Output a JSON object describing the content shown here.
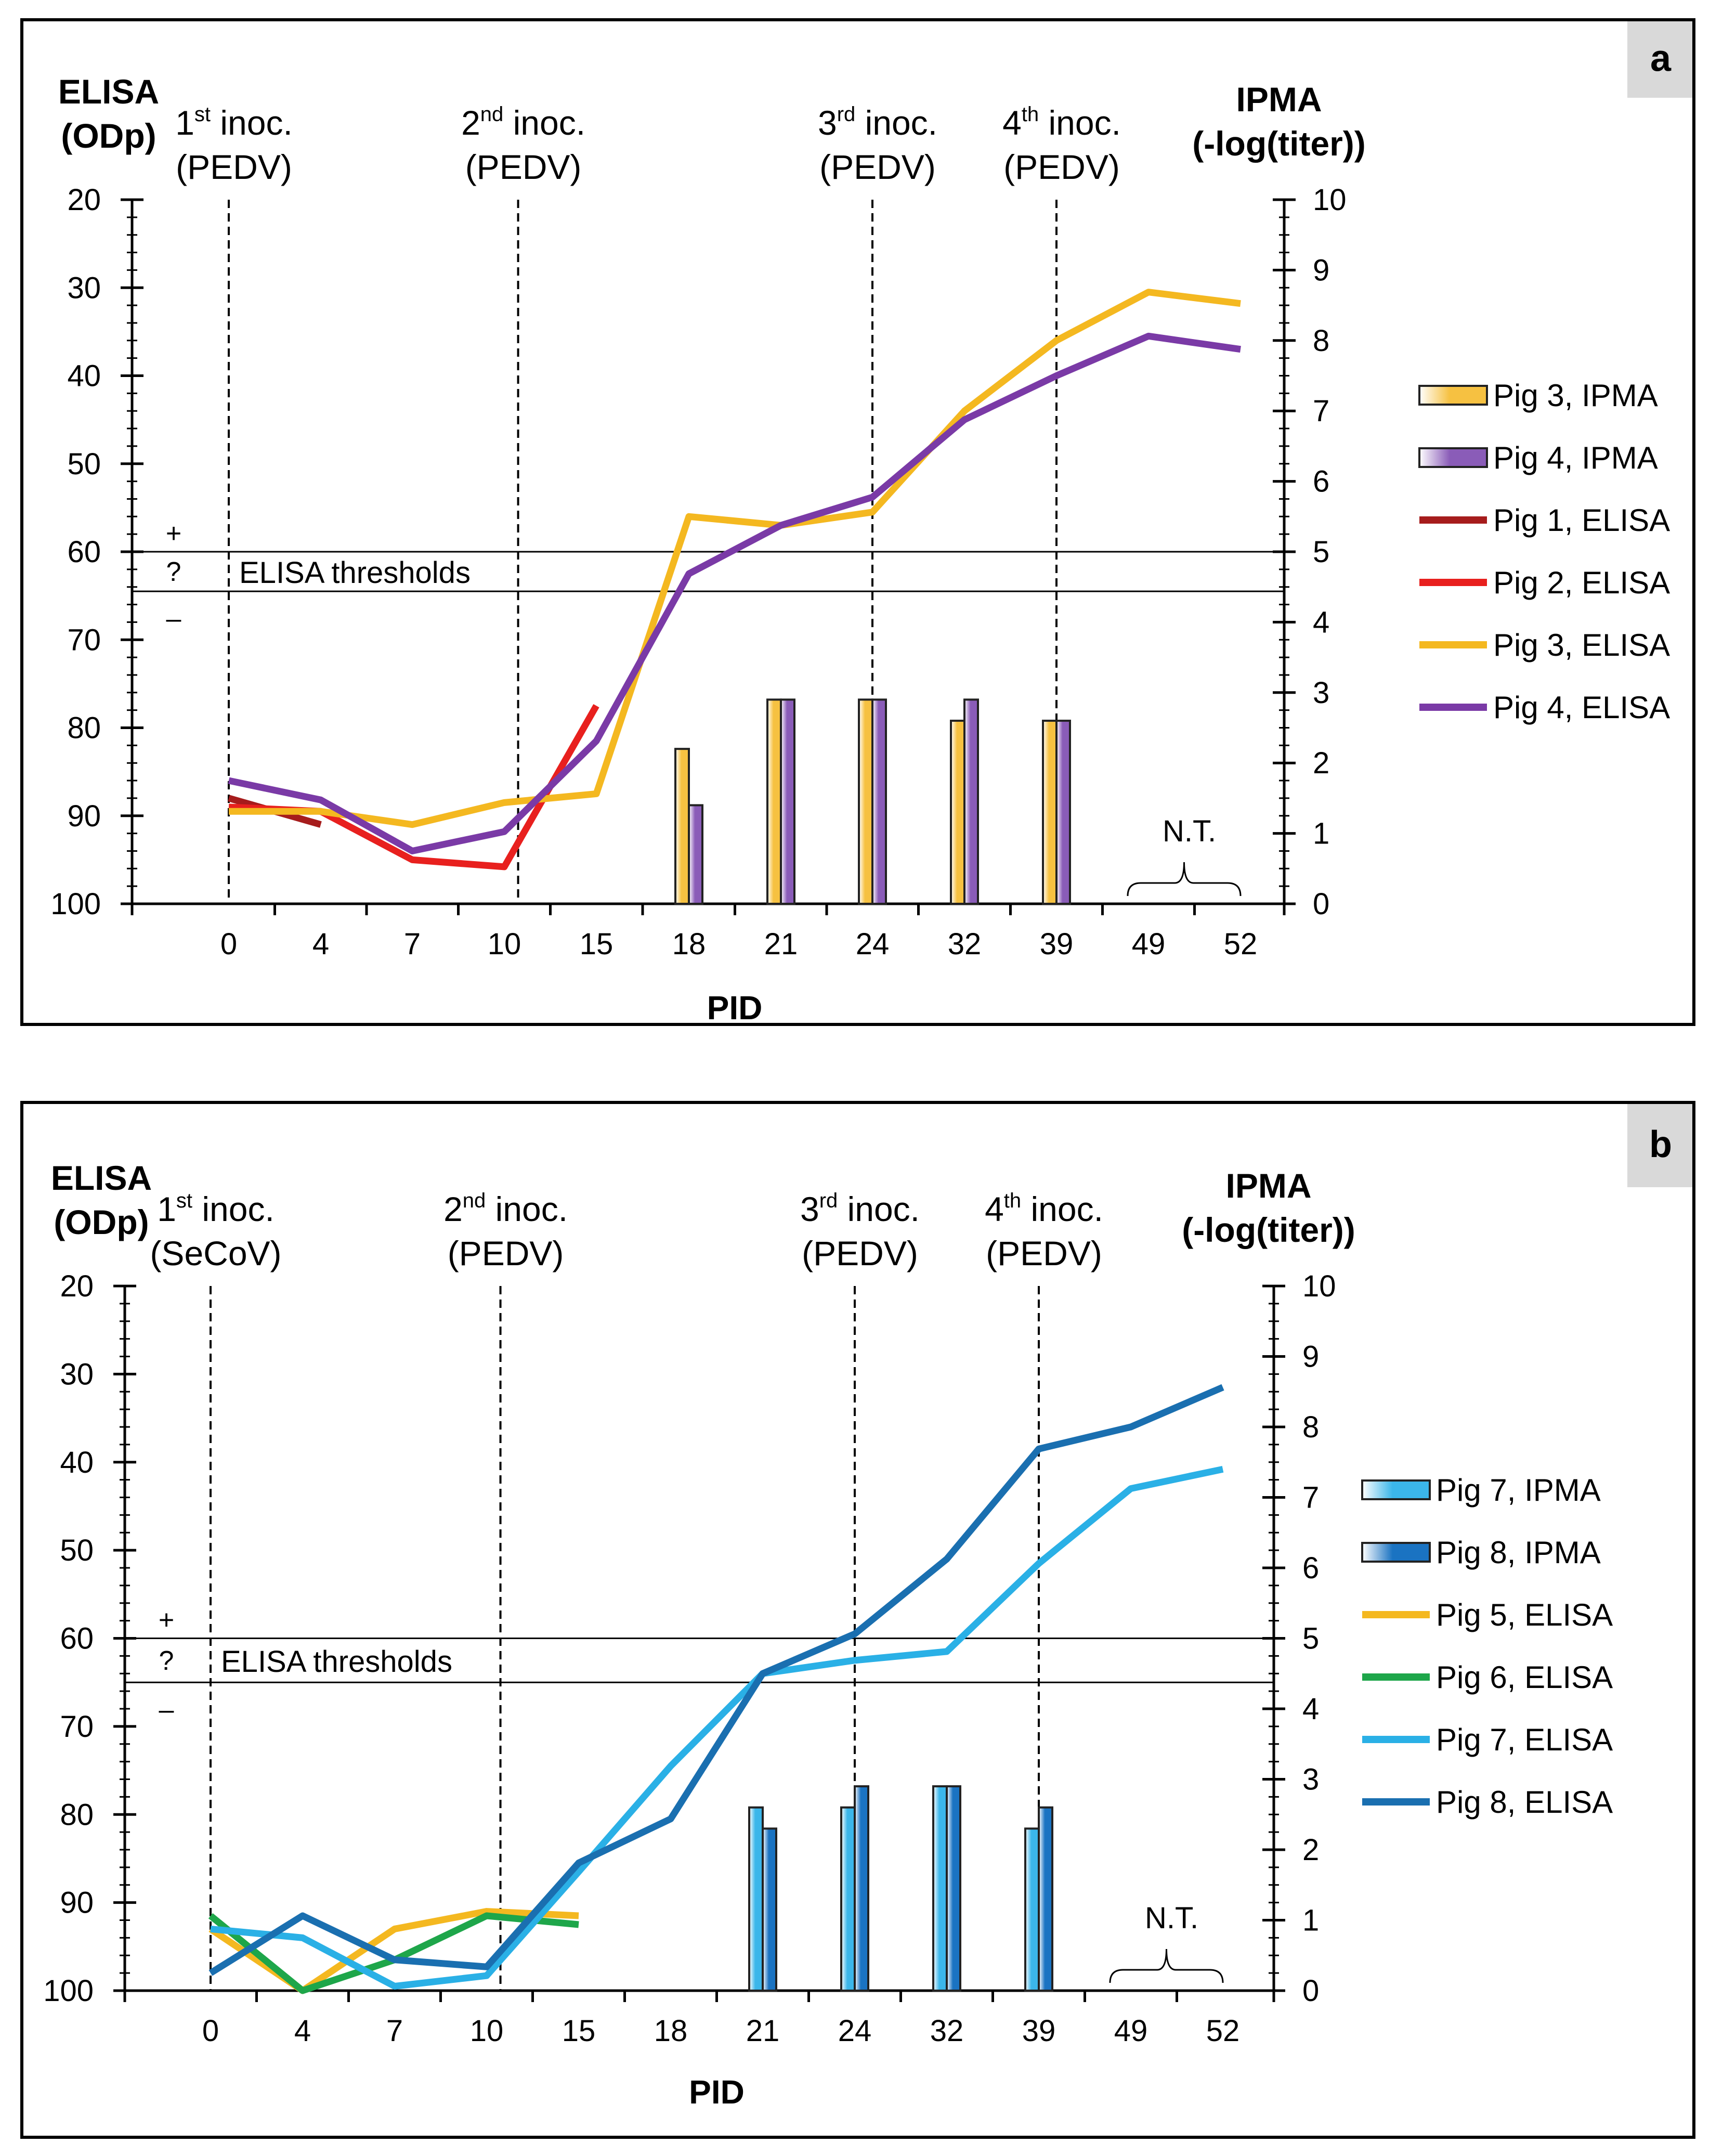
{
  "chart_data": [
    {
      "type": "bar+line",
      "panel_label": "a",
      "title": "",
      "xlabel": "PID",
      "ylabel_left": "ELISA (ODp)",
      "ylabel_right": "IPMA (-log(titer))",
      "categories": [
        "0",
        "4",
        "7",
        "10",
        "15",
        "18",
        "21",
        "24",
        "32",
        "39",
        "49",
        "52"
      ],
      "left_axis": {
        "min": 20,
        "max": 100,
        "inverted": true,
        "ticks": [
          20,
          30,
          40,
          50,
          60,
          70,
          80,
          90,
          100
        ]
      },
      "right_axis": {
        "min": 0,
        "max": 10,
        "ticks": [
          0,
          1,
          2,
          3,
          4,
          5,
          6,
          7,
          8,
          9,
          10
        ]
      },
      "inoculations": [
        {
          "ordinal": "1",
          "suffix": "st",
          "word": " inoc.",
          "virus": "(PEDV)",
          "position": 0
        },
        {
          "ordinal": "2",
          "suffix": "nd",
          "word": " inoc.",
          "virus": "(PEDV)",
          "position": 3.15
        },
        {
          "ordinal": "3",
          "suffix": "rd",
          "word": " inoc.",
          "virus": "(PEDV)",
          "position": 7
        },
        {
          "ordinal": "4",
          "suffix": "th",
          "word": " inoc.",
          "virus": "(PEDV)",
          "position": 9
        }
      ],
      "thresholds": {
        "label": "ELISA thresholds",
        "values": [
          60,
          64.5
        ],
        "symbols": [
          "+",
          "?",
          "–"
        ]
      },
      "not_tested": {
        "label": "N.T.",
        "from": 10,
        "to": 11
      },
      "bar_series": [
        {
          "name": "Pig 3, IPMA",
          "color": "#f6c141",
          "values": [
            null,
            null,
            null,
            null,
            null,
            2.2,
            2.9,
            2.9,
            2.6,
            2.6,
            null,
            null
          ]
        },
        {
          "name": "Pig 4, IPMA",
          "color": "#8a5cb8",
          "values": [
            null,
            null,
            null,
            null,
            null,
            1.4,
            2.9,
            2.9,
            2.9,
            2.6,
            null,
            null
          ]
        }
      ],
      "line_series": [
        {
          "name": "Pig 1, ELISA",
          "color": "#a61c1c",
          "values": [
            88,
            91,
            null,
            null,
            null,
            null,
            null,
            null,
            null,
            null,
            null,
            null
          ]
        },
        {
          "name": "Pig 2, ELISA",
          "color": "#e8201e",
          "values": [
            89,
            89.5,
            95,
            95.8,
            77.5,
            null,
            null,
            null,
            null,
            null,
            null,
            null
          ]
        },
        {
          "name": "Pig 3, ELISA",
          "color": "#f4b820",
          "values": [
            89.5,
            89.5,
            91,
            88.5,
            87.5,
            56,
            57,
            55.5,
            44,
            36,
            30.5,
            31.8
          ]
        },
        {
          "name": "Pig 4, ELISA",
          "color": "#7a3aa6",
          "values": [
            86,
            88.2,
            94,
            91.8,
            81.5,
            62.5,
            57,
            53.8,
            45,
            40,
            35.5,
            37
          ]
        }
      ]
    },
    {
      "type": "bar+line",
      "panel_label": "b",
      "title": "",
      "xlabel": "PID",
      "ylabel_left": "ELISA (ODp)",
      "ylabel_right": "IPMA (-log(titer))",
      "categories": [
        "0",
        "4",
        "7",
        "10",
        "15",
        "18",
        "21",
        "24",
        "32",
        "39",
        "49",
        "52"
      ],
      "left_axis": {
        "min": 20,
        "max": 100,
        "inverted": true,
        "ticks": [
          20,
          30,
          40,
          50,
          60,
          70,
          80,
          90,
          100
        ]
      },
      "right_axis": {
        "min": 0,
        "max": 10,
        "ticks": [
          0,
          1,
          2,
          3,
          4,
          5,
          6,
          7,
          8,
          9,
          10
        ]
      },
      "inoculations": [
        {
          "ordinal": "1",
          "suffix": "st",
          "word": " inoc.",
          "virus": "(SeCoV)",
          "position": 0
        },
        {
          "ordinal": "2",
          "suffix": "nd",
          "word": " inoc.",
          "virus": "(PEDV)",
          "position": 3.15
        },
        {
          "ordinal": "3",
          "suffix": "rd",
          "word": " inoc.",
          "virus": "(PEDV)",
          "position": 7
        },
        {
          "ordinal": "4",
          "suffix": "th",
          "word": " inoc.",
          "virus": "(PEDV)",
          "position": 9
        }
      ],
      "thresholds": {
        "label": "ELISA thresholds",
        "values": [
          60,
          65
        ],
        "symbols": [
          "+",
          "?",
          "–"
        ]
      },
      "not_tested": {
        "label": "N.T.",
        "from": 10,
        "to": 11
      },
      "bar_series": [
        {
          "name": "Pig 7, IPMA",
          "color": "#3bb6ea",
          "values": [
            null,
            null,
            null,
            null,
            null,
            null,
            2.6,
            2.6,
            2.9,
            2.3,
            null,
            null
          ]
        },
        {
          "name": "Pig 8, IPMA",
          "color": "#1a73c2",
          "values": [
            null,
            null,
            null,
            null,
            null,
            null,
            2.3,
            2.9,
            2.9,
            2.6,
            null,
            null
          ]
        }
      ],
      "line_series": [
        {
          "name": "Pig 5, ELISA",
          "color": "#f4b820",
          "values": [
            93,
            100,
            93,
            91,
            91.5,
            null,
            null,
            null,
            null,
            null,
            null,
            null
          ]
        },
        {
          "name": "Pig 6, ELISA",
          "color": "#1ea64a",
          "values": [
            91.5,
            100,
            96.5,
            91.5,
            92.5,
            null,
            null,
            null,
            null,
            null,
            null,
            null
          ]
        },
        {
          "name": "Pig 7, ELISA",
          "color": "#2ab0e6",
          "values": [
            93,
            94,
            99.5,
            98.3,
            86.5,
            74.5,
            64,
            62.5,
            61.5,
            51.5,
            43,
            40.8
          ]
        },
        {
          "name": "Pig 8, ELISA",
          "color": "#1a6fb0",
          "values": [
            98,
            91.5,
            96.5,
            97.3,
            85.5,
            80.5,
            64,
            59.5,
            51,
            38.5,
            36,
            31.5
          ]
        }
      ]
    }
  ]
}
